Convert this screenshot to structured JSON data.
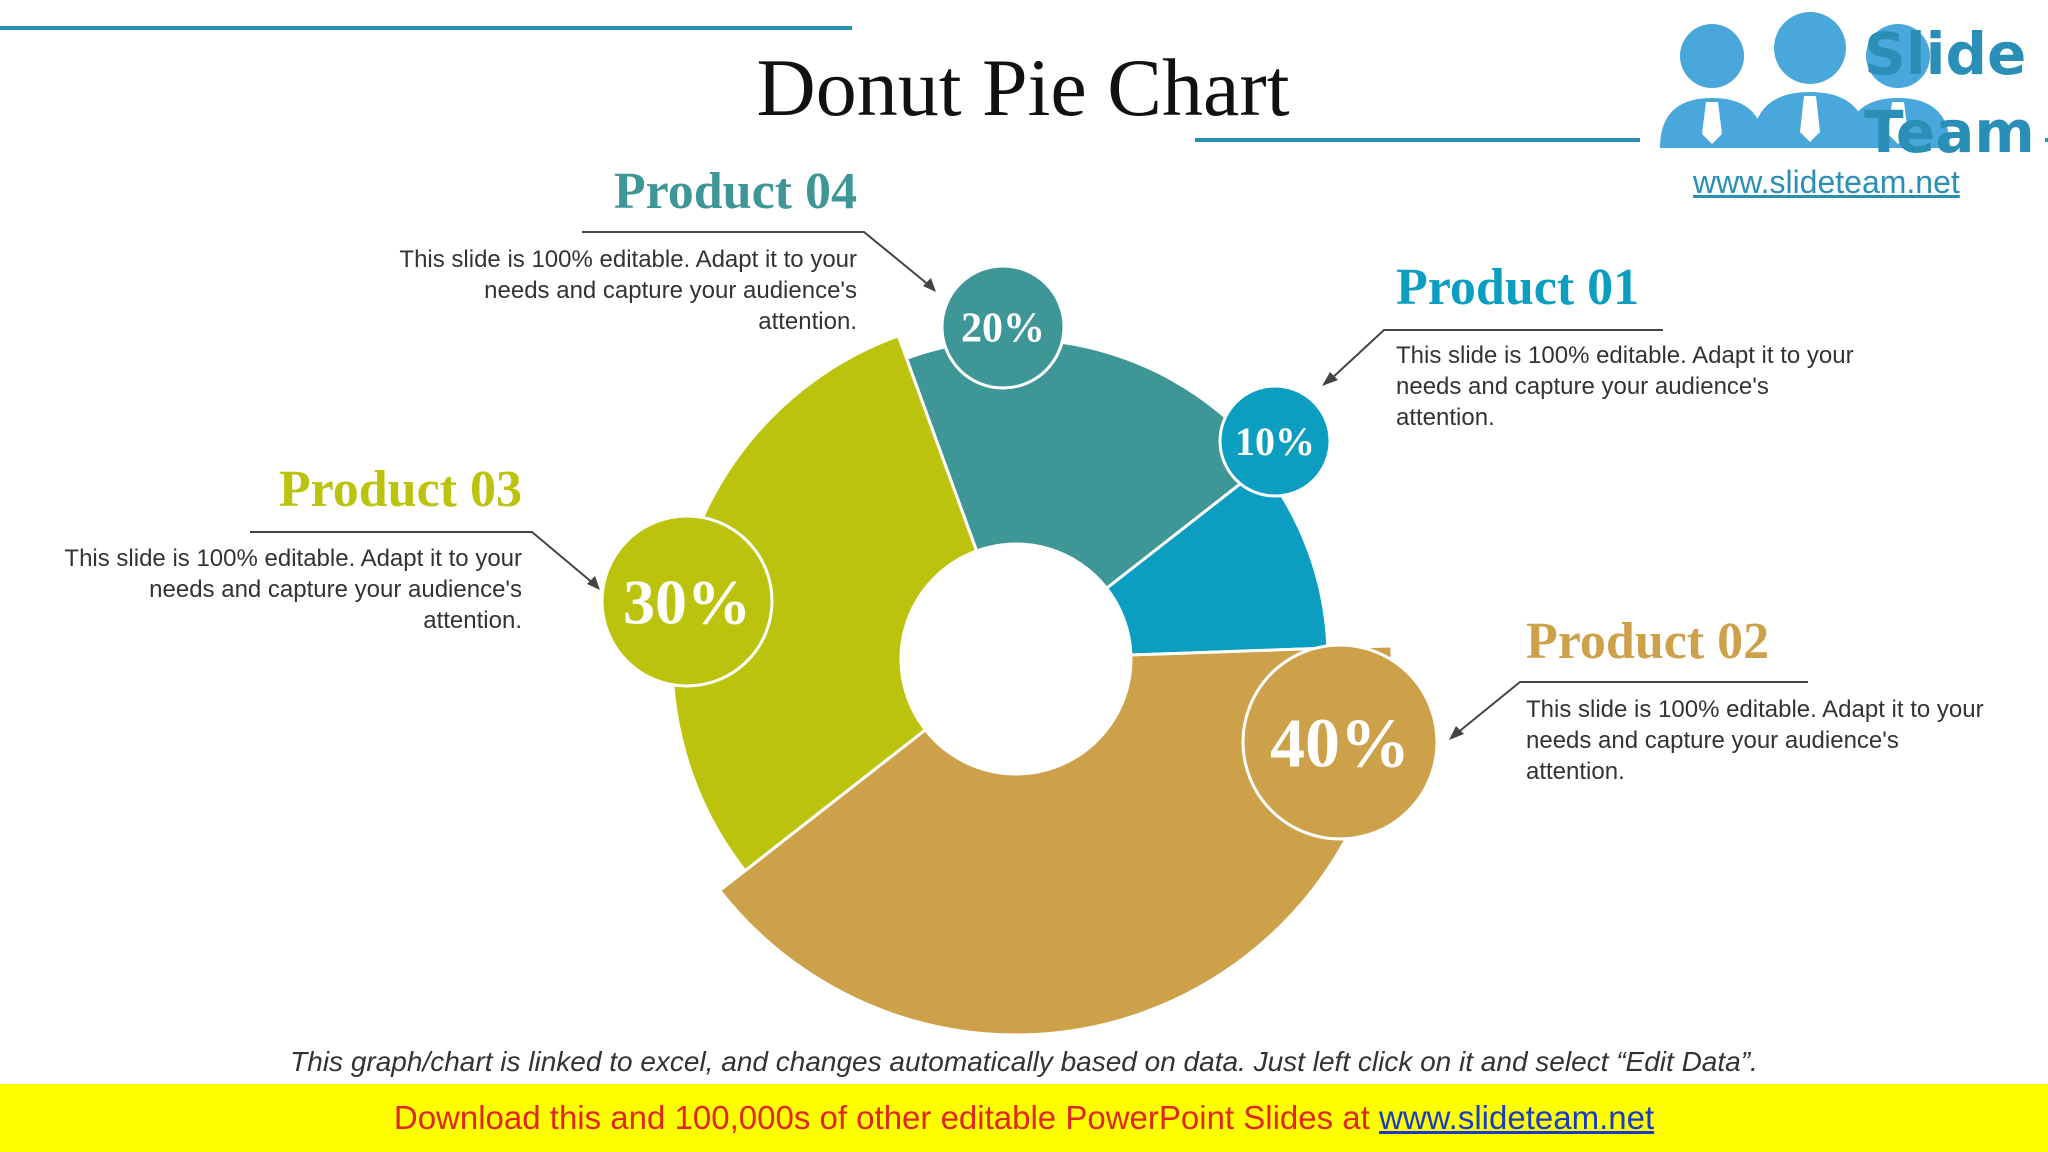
{
  "title": "Donut Pie Chart",
  "logo": {
    "line1": "Slide",
    "line2": "Team",
    "url": "www.slideteam.net"
  },
  "colors": {
    "product01": "#0b9ec1",
    "product02": "#cda14a",
    "product03": "#bcc30c",
    "product04": "#3f9697",
    "accent": "#2a8fb6"
  },
  "products": [
    {
      "title": "Product 01",
      "percent_label": "10%",
      "description": "This slide is 100% editable. Adapt it to your needs and capture your audience's attention."
    },
    {
      "title": "Product 02",
      "percent_label": "40%",
      "description": "This slide is 100% editable. Adapt it to your needs and capture your audience's attention."
    },
    {
      "title": "Product 03",
      "percent_label": "30%",
      "description": "This slide is 100% editable. Adapt it to your needs and capture your audience's attention."
    },
    {
      "title": "Product 04",
      "percent_label": "20%",
      "description": "This slide is 100% editable. Adapt it to your needs and capture your audience's attention."
    }
  ],
  "chart_data": {
    "type": "pie",
    "categories": [
      "Product 01",
      "Product 02",
      "Product 03",
      "Product 04"
    ],
    "values": [
      10,
      40,
      30,
      20
    ],
    "title": "Donut Pie Chart"
  },
  "footnote": "This graph/chart is linked to excel, and changes automatically based on data. Just left click on it and select “Edit Data”.",
  "banner": {
    "text": "Download this and 100,000s of other editable PowerPoint Slides at",
    "url": "www.slideteam.net"
  }
}
